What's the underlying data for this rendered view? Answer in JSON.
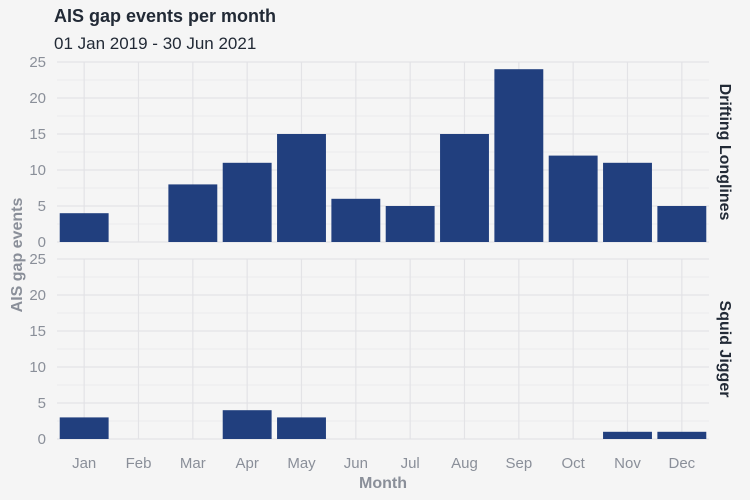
{
  "chart_data": {
    "type": "bar",
    "title": "AIS gap events per month",
    "subtitle": "01 Jan 2019 - 30 Jun 2021",
    "xlabel": "Month",
    "ylabel": "AIS gap events",
    "categories": [
      "Jan",
      "Feb",
      "Mar",
      "Apr",
      "May",
      "Jun",
      "Jul",
      "Aug",
      "Sep",
      "Oct",
      "Nov",
      "Dec"
    ],
    "ylim": [
      0,
      25
    ],
    "yticks": [
      "0",
      "5",
      "10",
      "15",
      "20",
      "25"
    ],
    "grid": true,
    "bar_color": "#213f7e",
    "background_color": "#f5f5f5",
    "grid_color": "#e3e3e6",
    "facets": [
      {
        "name": "Drifting Longlines",
        "values": [
          4,
          0,
          8,
          11,
          15,
          6,
          5,
          15,
          24,
          12,
          11,
          5
        ]
      },
      {
        "name": "Squid Jigger",
        "values": [
          3,
          0,
          0,
          4,
          3,
          0,
          0,
          0,
          0,
          0,
          1,
          1
        ]
      }
    ]
  }
}
